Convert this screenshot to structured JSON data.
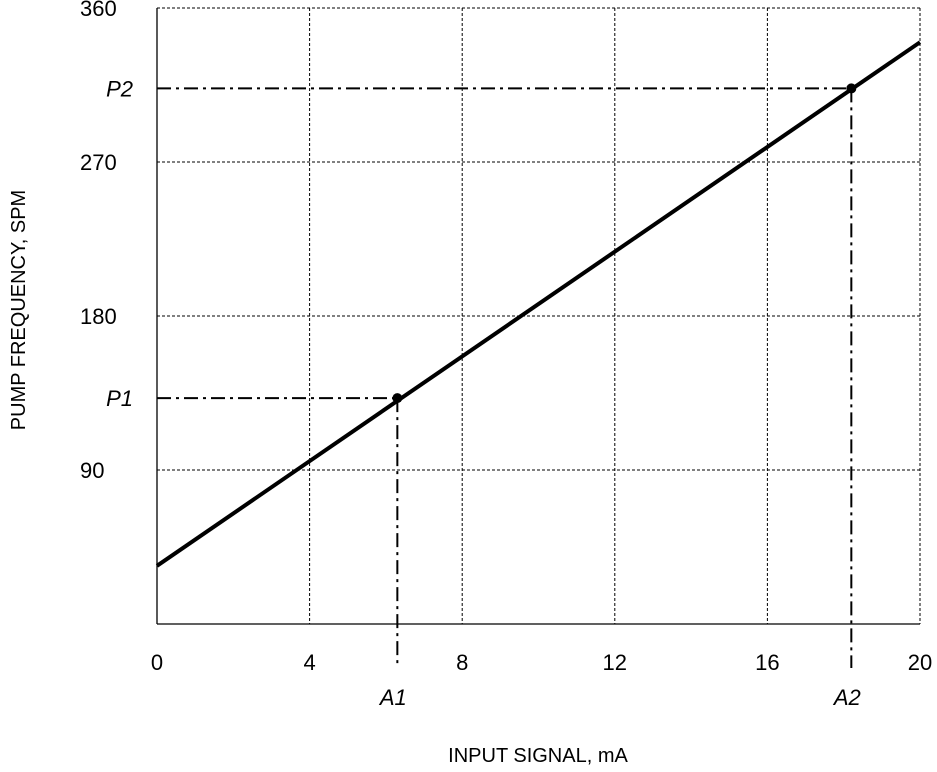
{
  "chart_data": {
    "type": "line",
    "xlabel": "INPUT SIGNAL, mA",
    "ylabel": "PUMP FREQUENCY, SPM",
    "xlim": [
      0,
      20
    ],
    "ylim": [
      0,
      360
    ],
    "x_ticks": [
      0,
      4,
      8,
      12,
      16,
      20
    ],
    "y_ticks": [
      90,
      180,
      270,
      360
    ],
    "grid": true,
    "series": [
      {
        "x": [
          0,
          20
        ],
        "y": [
          34,
          340
        ],
        "color": "#000000"
      }
    ],
    "annotations": [
      {
        "x": 6.3,
        "y": 132,
        "x_label": "A1",
        "y_label": "P1"
      },
      {
        "x": 18.2,
        "y": 313,
        "x_label": "A2",
        "y_label": "P2"
      }
    ]
  }
}
